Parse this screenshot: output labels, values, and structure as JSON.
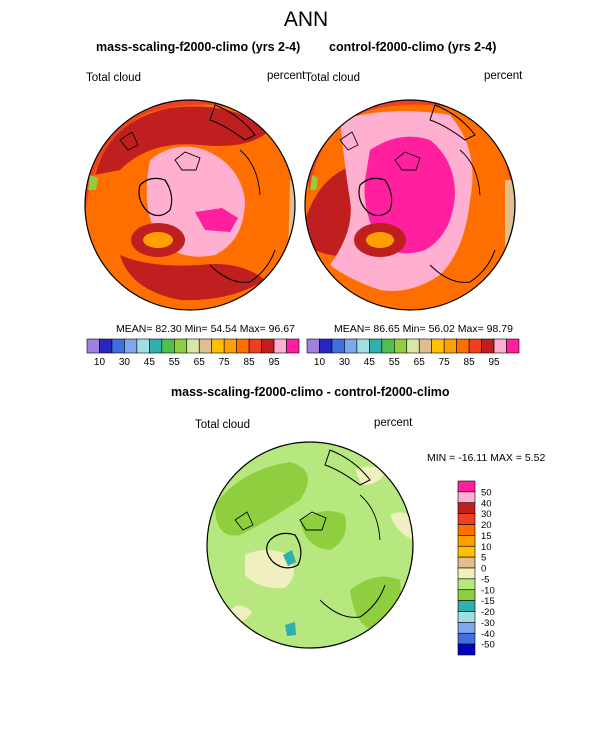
{
  "figure": {
    "title": "ANN"
  },
  "panel1": {
    "title": "mass-scaling-f2000-climo (yrs 2-4)",
    "left_label": "Total cloud",
    "right_label": "percent",
    "mean_label": "MEAN=",
    "mean": "82.30",
    "min_label": "Min=",
    "min": "54.54",
    "max_label": "Max=",
    "max": "96.67"
  },
  "panel2": {
    "title": "control-f2000-climo (yrs 2-4)",
    "left_label": "Total cloud",
    "right_label": "percent",
    "mean_label": "MEAN=",
    "mean": "86.65",
    "min_label": "Min=",
    "min": "56.02",
    "max_label": "Max=",
    "max": "98.79"
  },
  "panel3": {
    "title": "mass-scaling-f2000-climo - control-f2000-climo",
    "left_label": "Total cloud",
    "right_label": "percent",
    "minmax": "MIN = -16.11  MAX =   5.52"
  },
  "colorbar_top": {
    "colors": [
      "#9f7fe0",
      "#2727bf",
      "#3f6fe0",
      "#7fa7f0",
      "#9fdfdf",
      "#2fafaf",
      "#4fbf4f",
      "#8fcf3f",
      "#d7e7a7",
      "#dfbf8f",
      "#ffc000",
      "#ffa000",
      "#ff6f00",
      "#ef3f1f",
      "#bf1f1f",
      "#ffafcf",
      "#ff1f9f"
    ],
    "labels": [
      "10",
      "30",
      "45",
      "55",
      "65",
      "75",
      "85",
      "95"
    ]
  },
  "colorbar_diff": {
    "colors": [
      "#9f7fe0",
      "#0000c0",
      "#3f6fe0",
      "#7fa7f0",
      "#9fdfdf",
      "#2fafaf",
      "#8fcf3f",
      "#b7e77f",
      "#efefbf",
      "#dfbf8f",
      "#ffc000",
      "#ffa000",
      "#ff6f00",
      "#ef3f1f",
      "#bf1f1f",
      "#ffafcf",
      "#ff1f9f"
    ],
    "labels": [
      "50",
      "40",
      "30",
      "20",
      "15",
      "10",
      "5",
      "0",
      "-5",
      "-10",
      "-15",
      "-20",
      "-30",
      "-40",
      "-50"
    ]
  },
  "chart_data": [
    {
      "type": "polar map",
      "title": "mass-scaling-f2000-climo (yrs 2-4)",
      "variable": "Total cloud",
      "units": "percent",
      "mean": 82.3,
      "min": 54.54,
      "max": 96.67,
      "levels": [
        10,
        30,
        45,
        55,
        65,
        75,
        85,
        95
      ]
    },
    {
      "type": "polar map",
      "title": "control-f2000-climo (yrs 2-4)",
      "variable": "Total cloud",
      "units": "percent",
      "mean": 86.65,
      "min": 56.02,
      "max": 98.79,
      "levels": [
        10,
        30,
        45,
        55,
        65,
        75,
        85,
        95
      ]
    },
    {
      "type": "polar map",
      "title": "mass-scaling-f2000-climo - control-f2000-climo",
      "variable": "Total cloud",
      "units": "percent",
      "min": -16.11,
      "max": 5.52,
      "levels": [
        50,
        40,
        30,
        20,
        15,
        10,
        5,
        0,
        -5,
        -10,
        -15,
        -20,
        -30,
        -40,
        -50
      ]
    }
  ]
}
